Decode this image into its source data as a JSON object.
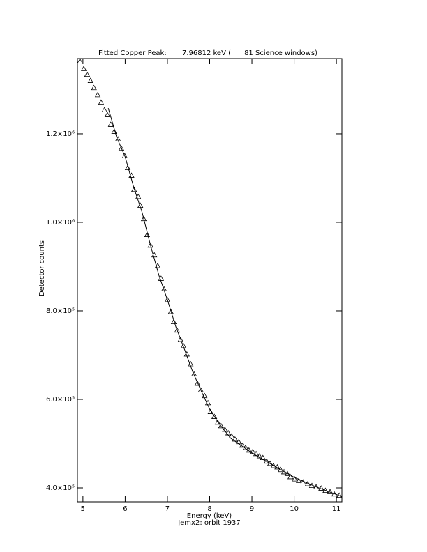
{
  "chart_data": {
    "type": "scatter",
    "title": "Fitted Copper Peak:       7.96812 keV (      81 Science windows)",
    "x_label": "Energy (keV)",
    "subtitle": "Jemx2: orbit 1937",
    "y_label": "Detector counts",
    "color": "#000000",
    "xlim": [
      4.87,
      11.13
    ],
    "ylim": [
      368500,
      1370000
    ],
    "xticks": [
      5,
      6,
      7,
      8,
      9,
      10,
      11
    ],
    "yticks": [
      {
        "value": 400000,
        "label": "4.0×10⁵"
      },
      {
        "value": 600000,
        "label": "6.0×10⁵"
      },
      {
        "value": 800000,
        "label": "8.0×10⁵"
      },
      {
        "value": 1000000,
        "label": "1.0×10⁶"
      },
      {
        "value": 1200000,
        "label": "1.2×10⁶"
      }
    ],
    "points": {
      "x": [
        4.93,
        5.02,
        5.1,
        5.18,
        5.26,
        5.35,
        5.43,
        5.51,
        5.58,
        5.66,
        5.74,
        5.83,
        5.91,
        5.99,
        6.06,
        6.15,
        6.21,
        6.31,
        6.36,
        6.44,
        6.52,
        6.6,
        6.69,
        6.77,
        6.85,
        6.92,
        7.0,
        7.08,
        7.15,
        7.23,
        7.31,
        7.38,
        7.46,
        7.55,
        7.63,
        7.71,
        7.79,
        7.88,
        7.96,
        8.02,
        8.11,
        8.19,
        8.27,
        8.36,
        8.44,
        8.52,
        8.6,
        8.69,
        8.77,
        8.85,
        8.93,
        9.02,
        9.1,
        9.18,
        9.26,
        9.35,
        9.43,
        9.51,
        9.6,
        9.68,
        9.76,
        9.84,
        9.91,
        10.01,
        10.11,
        10.21,
        10.32,
        10.42,
        10.52,
        10.64,
        10.74,
        10.85,
        10.95,
        11.07
      ],
      "y": [
        1364000,
        1347000,
        1334000,
        1320000,
        1304000,
        1288000,
        1271000,
        1254000,
        1243000,
        1221000,
        1205000,
        1188000,
        1167000,
        1150000,
        1123000,
        1106000,
        1074000,
        1058000,
        1038000,
        1008000,
        972000,
        948000,
        926000,
        902000,
        873000,
        849000,
        825000,
        798000,
        775000,
        756000,
        735000,
        721000,
        702000,
        680000,
        657000,
        636000,
        621000,
        608000,
        592000,
        572000,
        561000,
        548000,
        540000,
        532000,
        524000,
        517000,
        510000,
        504000,
        496000,
        491000,
        485000,
        482000,
        477000,
        472000,
        468000,
        460000,
        455000,
        450000,
        447000,
        441000,
        436000,
        432000,
        425000,
        420000,
        416000,
        413000,
        409000,
        405000,
        402000,
        399000,
        394000,
        391000,
        386000,
        383000
      ]
    },
    "fit": {
      "x": [
        5.6,
        5.8,
        6.0,
        6.2,
        6.4,
        6.6,
        6.8,
        7.0,
        7.2,
        7.4,
        7.6,
        7.8,
        8.0,
        8.2,
        8.5,
        9.0,
        9.5,
        10.0,
        10.5,
        11.0,
        11.13
      ],
      "y": [
        1258000,
        1192000,
        1148000,
        1080000,
        1023000,
        948000,
        880000,
        825000,
        764000,
        714000,
        662000,
        619000,
        578000,
        548000,
        512000,
        479000,
        451000,
        424000,
        403000,
        385000,
        380000
      ]
    }
  }
}
